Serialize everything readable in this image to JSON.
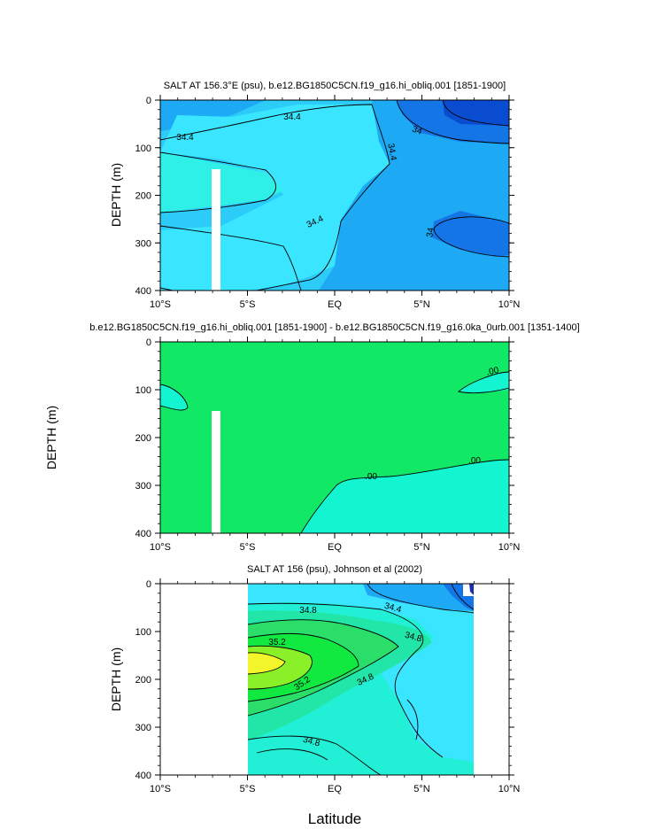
{
  "colors": {
    "top": [
      "#0a4cd0",
      "#1476e6",
      "#1ea9f5",
      "#2ccbf8",
      "#3ae6ff",
      "#2ef0e6"
    ],
    "mid": [
      "#11e865",
      "#13f5d0"
    ],
    "bottom": [
      "#1476e6",
      "#1ea9f5",
      "#3ae6ff",
      "#22f0d6",
      "#21e6a8",
      "#2bde6a",
      "#11e840",
      "#8af028",
      "#f2f52a"
    ]
  },
  "chart_data": [
    {
      "type": "contour",
      "title": "SALT AT 156.3°E (psu), b.e12.BG1850C5CN.f19_g16.hi_obliq.001 [1851-1900]",
      "ylabel": "DEPTH (m)",
      "xlabel": "",
      "xlim": [
        -10,
        10
      ],
      "ylim": [
        400,
        0
      ],
      "xticks": [
        "10°S",
        "5°S",
        "EQ",
        "5°N",
        "10°N"
      ],
      "yticks": [
        "0",
        "100",
        "200",
        "300",
        "400"
      ],
      "contour_labels": [
        "34.4",
        "34.4",
        "34.4",
        "34",
        "34.4",
        "34"
      ],
      "masked_column_lat": [
        -7.1,
        -6.6
      ]
    },
    {
      "type": "contour",
      "title": "b.e12.BG1850C5CN.f19_g16.hi_obliq.001 [1851-1900] - b.e12.BG1850C5CN.f19_g16.0ka_0urb.001 [1351-1400]",
      "ylabel": "DEPTH (m)",
      "xlabel": "",
      "xlim": [
        -10,
        10
      ],
      "ylim": [
        400,
        0
      ],
      "xticks": [
        "10°S",
        "5°S",
        "EQ",
        "5°N",
        "10°N"
      ],
      "yticks": [
        "0",
        "100",
        "200",
        "300",
        "400"
      ],
      "contour_labels": [
        ".00",
        ".00",
        ".00"
      ],
      "masked_column_lat": [
        -7.1,
        -6.6
      ]
    },
    {
      "type": "contour",
      "title": "SALT AT 156 (psu), Johnson et al (2002)",
      "ylabel": "DEPTH (m)",
      "xlabel": "Latitude",
      "xlim": [
        -10,
        10
      ],
      "ylim": [
        400,
        0
      ],
      "xticks": [
        "10°S",
        "5°S",
        "EQ",
        "5°N",
        "10°N"
      ],
      "yticks": [
        "0",
        "100",
        "200",
        "300",
        "400"
      ],
      "contour_labels": [
        "34.8",
        "34.4",
        "35.2",
        "34.8",
        "35.2",
        "34.8",
        "34.8"
      ],
      "data_extent_lat": [
        -5,
        8
      ]
    }
  ]
}
